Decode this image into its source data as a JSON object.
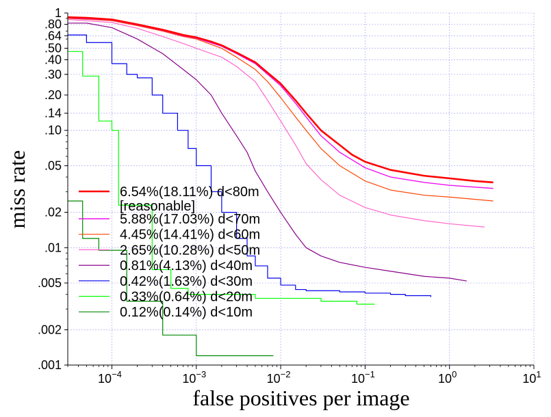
{
  "chart_data": {
    "type": "line",
    "xlabel": "false positives per image",
    "ylabel": "miss rate",
    "xscale": "log",
    "yscale": "log",
    "xlim": [
      3e-05,
      10
    ],
    "ylim": [
      0.001,
      1
    ],
    "grid": true,
    "legend_position": "lower-left",
    "x_ticks": [
      {
        "value": 0.0001,
        "base": "10",
        "exp": "−4"
      },
      {
        "value": 0.001,
        "base": "10",
        "exp": "−3"
      },
      {
        "value": 0.01,
        "base": "10",
        "exp": "−2"
      },
      {
        "value": 0.1,
        "base": "10",
        "exp": "−1"
      },
      {
        "value": 1,
        "base": "10",
        "exp": "0"
      },
      {
        "value": 10,
        "base": "10",
        "exp": "1"
      }
    ],
    "y_ticks": [
      {
        "value": 1,
        "label": "1"
      },
      {
        "value": 0.8,
        "label": ".80"
      },
      {
        "value": 0.64,
        "label": ".64"
      },
      {
        "value": 0.5,
        "label": ".50"
      },
      {
        "value": 0.4,
        "label": ".40"
      },
      {
        "value": 0.3,
        "label": ".30"
      },
      {
        "value": 0.2,
        "label": ".20"
      },
      {
        "value": 0.14,
        "label": ".14"
      },
      {
        "value": 0.1,
        "label": ".10"
      },
      {
        "value": 0.05,
        "label": ".05"
      },
      {
        "value": 0.02,
        "label": ".02"
      },
      {
        "value": 0.01,
        "label": ".01"
      },
      {
        "value": 0.005,
        "label": ".005"
      },
      {
        "value": 0.002,
        "label": ".002"
      },
      {
        "value": 0.001,
        "label": ".001"
      }
    ],
    "series": [
      {
        "name": "6.54%(18.11%) d<80m [reasonable]",
        "legend_lines": [
          "6.54%(18.11%) d<80m",
          "[reasonable]"
        ],
        "color": "#ff0000",
        "width": 2.6,
        "step": false,
        "points": [
          [
            3e-05,
            0.92
          ],
          [
            5e-05,
            0.91
          ],
          [
            0.0001,
            0.88
          ],
          [
            0.0002,
            0.8
          ],
          [
            0.0004,
            0.72
          ],
          [
            0.0007,
            0.65
          ],
          [
            0.001,
            0.62
          ],
          [
            0.0015,
            0.57
          ],
          [
            0.002,
            0.53
          ],
          [
            0.003,
            0.46
          ],
          [
            0.005,
            0.38
          ],
          [
            0.007,
            0.31
          ],
          [
            0.01,
            0.25
          ],
          [
            0.015,
            0.18
          ],
          [
            0.02,
            0.14
          ],
          [
            0.03,
            0.1
          ],
          [
            0.05,
            0.075
          ],
          [
            0.07,
            0.062
          ],
          [
            0.1,
            0.054
          ],
          [
            0.2,
            0.046
          ],
          [
            0.5,
            0.041
          ],
          [
            1,
            0.039
          ],
          [
            2,
            0.037
          ],
          [
            3.3,
            0.036
          ]
        ]
      },
      {
        "name": "5.88%(17.03%) d<70m",
        "legend_lines": [
          "5.88%(17.03%) d<70m"
        ],
        "color": "#ee11ee",
        "width": 1.4,
        "step": false,
        "points": [
          [
            3e-05,
            0.91
          ],
          [
            0.0001,
            0.87
          ],
          [
            0.0002,
            0.79
          ],
          [
            0.0004,
            0.71
          ],
          [
            0.0007,
            0.64
          ],
          [
            0.001,
            0.61
          ],
          [
            0.002,
            0.52
          ],
          [
            0.003,
            0.45
          ],
          [
            0.005,
            0.37
          ],
          [
            0.007,
            0.3
          ],
          [
            0.01,
            0.24
          ],
          [
            0.015,
            0.17
          ],
          [
            0.02,
            0.13
          ],
          [
            0.03,
            0.09
          ],
          [
            0.05,
            0.065
          ],
          [
            0.1,
            0.048
          ],
          [
            0.2,
            0.04
          ],
          [
            0.5,
            0.036
          ],
          [
            1,
            0.034
          ],
          [
            3.3,
            0.032
          ]
        ]
      },
      {
        "name": "4.45%(14.41%) d<60m",
        "legend_lines": [
          "4.45%(14.41%) d<60m"
        ],
        "color": "#ff4400",
        "width": 1.2,
        "step": false,
        "points": [
          [
            3e-05,
            0.9
          ],
          [
            0.0001,
            0.86
          ],
          [
            0.0002,
            0.78
          ],
          [
            0.0004,
            0.7
          ],
          [
            0.0007,
            0.63
          ],
          [
            0.001,
            0.6
          ],
          [
            0.002,
            0.5
          ],
          [
            0.003,
            0.42
          ],
          [
            0.005,
            0.33
          ],
          [
            0.007,
            0.26
          ],
          [
            0.01,
            0.19
          ],
          [
            0.015,
            0.13
          ],
          [
            0.02,
            0.1
          ],
          [
            0.03,
            0.07
          ],
          [
            0.05,
            0.05
          ],
          [
            0.1,
            0.037
          ],
          [
            0.2,
            0.031
          ],
          [
            0.5,
            0.028
          ],
          [
            1,
            0.027
          ],
          [
            3.3,
            0.025
          ]
        ]
      },
      {
        "name": "2.65%(10.28%) d<50m",
        "legend_lines": [
          "2.65%(10.28%) d<50m"
        ],
        "color": "#ff66cc",
        "width": 1.2,
        "step": false,
        "points": [
          [
            3e-05,
            0.88
          ],
          [
            0.0001,
            0.83
          ],
          [
            0.0002,
            0.74
          ],
          [
            0.0004,
            0.63
          ],
          [
            0.0007,
            0.55
          ],
          [
            0.001,
            0.5
          ],
          [
            0.002,
            0.42
          ],
          [
            0.003,
            0.35
          ],
          [
            0.005,
            0.26
          ],
          [
            0.007,
            0.18
          ],
          [
            0.01,
            0.12
          ],
          [
            0.015,
            0.075
          ],
          [
            0.02,
            0.052
          ],
          [
            0.03,
            0.038
          ],
          [
            0.05,
            0.028
          ],
          [
            0.1,
            0.022
          ],
          [
            0.2,
            0.019
          ],
          [
            0.5,
            0.017
          ],
          [
            1,
            0.016
          ],
          [
            2.6,
            0.015
          ]
        ]
      },
      {
        "name": "0.81%(4.13%) d<40m",
        "legend_lines": [
          "0.81%(4.13%) d<40m"
        ],
        "color": "#880088",
        "width": 1.2,
        "step": false,
        "points": [
          [
            3e-05,
            0.82
          ],
          [
            5e-05,
            0.82
          ],
          [
            0.0001,
            0.75
          ],
          [
            0.0002,
            0.6
          ],
          [
            0.0004,
            0.45
          ],
          [
            0.0007,
            0.33
          ],
          [
            0.001,
            0.27
          ],
          [
            0.0015,
            0.2
          ],
          [
            0.002,
            0.14
          ],
          [
            0.003,
            0.09
          ],
          [
            0.004,
            0.065
          ],
          [
            0.005,
            0.045
          ],
          [
            0.007,
            0.03
          ],
          [
            0.01,
            0.02
          ],
          [
            0.015,
            0.013
          ],
          [
            0.02,
            0.01
          ],
          [
            0.03,
            0.0085
          ],
          [
            0.05,
            0.0075
          ],
          [
            0.1,
            0.0068
          ],
          [
            0.2,
            0.0063
          ],
          [
            0.5,
            0.0057
          ],
          [
            1,
            0.0055
          ],
          [
            1.6,
            0.0052
          ]
        ]
      },
      {
        "name": "0.42%(1.63%) d<30m",
        "legend_lines": [
          "0.42%(1.63%) d<30m"
        ],
        "color": "#0000ee",
        "width": 1.2,
        "step": true,
        "points": [
          [
            3e-05,
            0.65
          ],
          [
            5e-05,
            0.65
          ],
          [
            5e-05,
            0.56
          ],
          [
            0.0001,
            0.56
          ],
          [
            0.0001,
            0.37
          ],
          [
            0.00015,
            0.37
          ],
          [
            0.00015,
            0.3
          ],
          [
            0.0002,
            0.28
          ],
          [
            0.0003,
            0.2
          ],
          [
            0.0004,
            0.14
          ],
          [
            0.0006,
            0.1
          ],
          [
            0.0008,
            0.07
          ],
          [
            0.001,
            0.05
          ],
          [
            0.0015,
            0.03
          ],
          [
            0.002,
            0.02
          ],
          [
            0.003,
            0.012
          ],
          [
            0.004,
            0.0085
          ],
          [
            0.005,
            0.007
          ],
          [
            0.007,
            0.0055
          ],
          [
            0.01,
            0.0048
          ],
          [
            0.015,
            0.0044
          ],
          [
            0.02,
            0.0043
          ],
          [
            0.05,
            0.0042
          ],
          [
            0.1,
            0.0041
          ],
          [
            0.2,
            0.004
          ],
          [
            0.3,
            0.0039
          ],
          [
            0.6,
            0.0038
          ]
        ]
      },
      {
        "name": "0.33%(0.64%) d<20m",
        "legend_lines": [
          "0.33%(0.64%) d<20m"
        ],
        "color": "#00ff00",
        "width": 1.2,
        "step": true,
        "points": [
          [
            3e-05,
            0.47
          ],
          [
            4.5e-05,
            0.47
          ],
          [
            4.5e-05,
            0.29
          ],
          [
            7e-05,
            0.29
          ],
          [
            7e-05,
            0.12
          ],
          [
            0.0001,
            0.12
          ],
          [
            0.0001,
            0.1
          ],
          [
            0.00012,
            0.1
          ],
          [
            0.00012,
            0.023
          ],
          [
            0.0003,
            0.023
          ],
          [
            0.0003,
            0.0065
          ],
          [
            0.0005,
            0.0065
          ],
          [
            0.0005,
            0.0045
          ],
          [
            0.0008,
            0.0045
          ],
          [
            0.0008,
            0.004
          ],
          [
            0.005,
            0.004
          ],
          [
            0.005,
            0.0037
          ],
          [
            0.03,
            0.0037
          ],
          [
            0.03,
            0.0035
          ],
          [
            0.08,
            0.0035
          ],
          [
            0.08,
            0.0033
          ],
          [
            0.13,
            0.0033
          ]
        ]
      },
      {
        "name": "0.12%(0.14%) d<10m",
        "legend_lines": [
          "0.12%(0.14%) d<10m"
        ],
        "color": "#008800",
        "width": 1.2,
        "step": true,
        "points": [
          [
            3e-05,
            0.025
          ],
          [
            4.5e-05,
            0.025
          ],
          [
            4.5e-05,
            0.012
          ],
          [
            7e-05,
            0.012
          ],
          [
            7e-05,
            0.0095
          ],
          [
            0.00015,
            0.0095
          ],
          [
            0.00015,
            0.0035
          ],
          [
            0.0004,
            0.0035
          ],
          [
            0.0004,
            0.0018
          ],
          [
            0.001,
            0.0018
          ],
          [
            0.001,
            0.0012
          ],
          [
            0.0082,
            0.0012
          ]
        ]
      }
    ]
  }
}
